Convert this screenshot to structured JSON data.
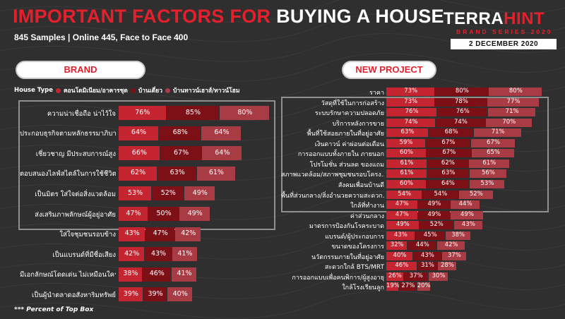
{
  "header": {
    "title_red": "IMPORTANT FACTORS FOR",
    "title_white": "BUYING A HOUSE",
    "subtitle": "845 Samples | Online 445, Face to Face 400"
  },
  "logo": {
    "terra": "TERRA",
    "hint": "HINT",
    "series": "BRAND SERIES 2020",
    "date": "2 DECEMBER 2020"
  },
  "sections": {
    "brand": "BRAND",
    "new_project": "NEW PROJECT"
  },
  "legend": {
    "label": "House Type",
    "items": [
      "คอนโดมิเนียม/อาคารชุด",
      "บ้านเดี่ยว",
      "บ้านทาวน์เฮาส์/ทาวน์โฮม"
    ]
  },
  "footnote": "*** Percent of Top Box",
  "colors": {
    "accent": "#e4202d",
    "series": [
      "#c42530",
      "#7d1017",
      "#a83b43"
    ]
  },
  "chart_data": [
    {
      "type": "bar",
      "orientation": "horizontal",
      "stacked": true,
      "title": "BRAND",
      "categories": [
        "ความน่าเชื่อถือ น่าไว้ใจ",
        "ประกอบธุรกิจตามหลักธรรมาภิบาล",
        "เชี่ยวชาญ มีประสบการณ์สูง",
        "ตอบสนองไลฟ์สไตล์ในการใช้ชีวิต",
        "เป็นมิตร ใส่ใจต่อสิ่งแวดล้อม",
        "ส่งเสริมภาพลักษณ์ผู้อยู่อาศัย",
        "ใส่ใจชุมชนรอบข้าง",
        "เป็นแบรนด์ที่มีชื่อเสียง",
        "มีเอกลักษณ์โดดเด่น ไม่เหมือนใคร",
        "เป็นผู้นำตลาดอสังหาริมทรัพย์"
      ],
      "series": [
        {
          "name": "คอนโดมิเนียม/อาคารชุด",
          "values": [
            76,
            64,
            66,
            62,
            53,
            47,
            43,
            42,
            38,
            39
          ]
        },
        {
          "name": "บ้านเดี่ยว",
          "values": [
            85,
            68,
            67,
            63,
            52,
            50,
            47,
            43,
            46,
            39
          ]
        },
        {
          "name": "บ้านทาวน์เฮาส์/ทาวน์โฮม",
          "values": [
            80,
            64,
            64,
            61,
            49,
            49,
            42,
            41,
            41,
            40
          ]
        }
      ],
      "value_suffix": "%"
    },
    {
      "type": "bar",
      "orientation": "horizontal",
      "stacked": true,
      "title": "NEW PROJECT",
      "categories": [
        "ราคา",
        "วัสดุที่ใช้ในการก่อสร้าง",
        "ระบบรักษาความปลอดภัย",
        "บริการหลังการขาย",
        "พื้นที่ใช้สอยภายในที่อยู่อาศัย",
        "เงินดาวน์ ค่าผ่อนต่อเดือน",
        "การออกแบบทั้งภายใน ภายนอก",
        "โปรโมชั่น ส่วนลด ของแถม",
        "สภาพแวดล้อม/สภาพชุมชนรอบโครง...",
        "สังคมเพื่อนบ้านดี",
        "พื้นที่ส่วนกลาง/สิ่งอำนวยความสะดวก...",
        "ใกล้ที่ทำงาน",
        "ค่าส่วนกลาง",
        "มาตรการป้องกันโรคระบาด",
        "แบรนด์/ผู้ประกอบการ",
        "ขนาดของโครงการ",
        "นวัตกรรมภายในที่อยู่อาศัย",
        "สะดวกใกล้ BTS/MRT",
        "การออกแบบเพื่อคนพิการ/ผู้สูงอายุ",
        "ใกล้โรงเรียนลูก"
      ],
      "series": [
        {
          "name": "คอนโดมิเนียม/อาคารชุด",
          "values": [
            73,
            73,
            76,
            74,
            63,
            59,
            60,
            61,
            61,
            60,
            54,
            47,
            47,
            49,
            43,
            32,
            40,
            46,
            26,
            19
          ]
        },
        {
          "name": "บ้านเดี่ยว",
          "values": [
            80,
            78,
            76,
            74,
            68,
            67,
            67,
            62,
            63,
            64,
            54,
            49,
            49,
            52,
            45,
            44,
            43,
            31,
            37,
            27
          ]
        },
        {
          "name": "บ้านทาวน์เฮาส์/ทาวน์โฮม",
          "values": [
            80,
            77,
            71,
            70,
            71,
            67,
            65,
            61,
            56,
            53,
            52,
            44,
            49,
            43,
            38,
            42,
            37,
            28,
            30,
            20
          ]
        }
      ],
      "value_suffix": "%"
    }
  ]
}
